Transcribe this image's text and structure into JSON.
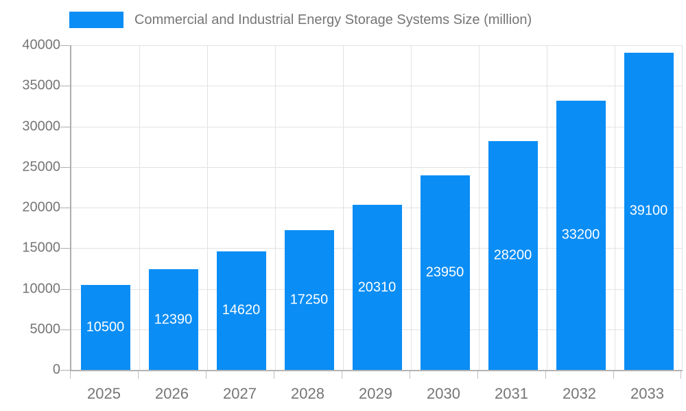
{
  "chart_data": {
    "type": "bar",
    "title": "Commercial and Industrial Energy Storage Systems Size (million)",
    "categories": [
      "2025",
      "2026",
      "2027",
      "2028",
      "2029",
      "2030",
      "2031",
      "2032",
      "2033"
    ],
    "values": [
      10500,
      12390,
      14620,
      17250,
      20310,
      23950,
      28200,
      33200,
      39100
    ],
    "series": [
      {
        "name": "Commercial and Industrial Energy Storage Systems Size (million)",
        "values": [
          10500,
          12390,
          14620,
          17250,
          20310,
          23950,
          28200,
          33200,
          39100
        ]
      }
    ],
    "xlabel": "",
    "ylabel": "",
    "ylim": [
      0,
      40000
    ],
    "ytick_interval": 5000,
    "ytick_labels": [
      "0",
      "5000",
      "10000",
      "15000",
      "20000",
      "25000",
      "30000",
      "35000",
      "40000"
    ],
    "grid": true,
    "legend_position": "top-left",
    "data_labels": "inside-center-white",
    "colors": {
      "bar": "#0a8df5",
      "bar_label_text": "#ffffff",
      "axis_text": "#757575",
      "title_text": "#757575",
      "gridline": "#e2e2e2",
      "axis_line": "#b0b0b0",
      "background": "#ffffff"
    }
  }
}
